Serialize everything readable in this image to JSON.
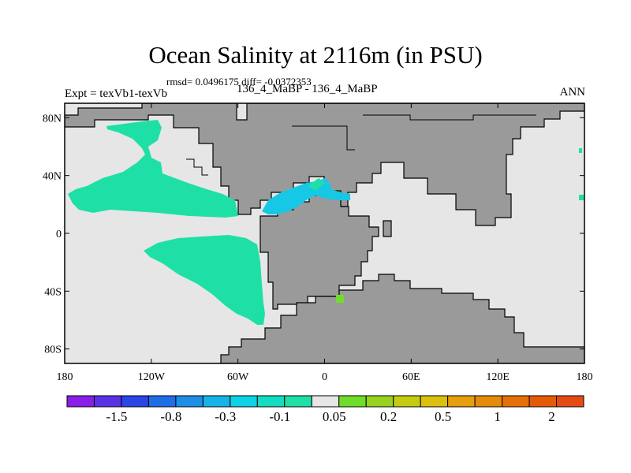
{
  "title": "Ocean Salinity at 2116m (in PSU)",
  "stats": "rmsd= 0.0496175 diff= -0.0372353",
  "experiment": "Expt = texVb1-texVb",
  "cases": "136_4_MaBP - 136_4_MaBP",
  "period": "ANN",
  "lat_labels": [
    "80N",
    "40N",
    "0",
    "40S",
    "80S"
  ],
  "lat_values": [
    80,
    40,
    0,
    -40,
    -80
  ],
  "lon_labels": [
    "180",
    "120W",
    "60W",
    "0",
    "60E",
    "120E",
    "180"
  ],
  "lon_values": [
    -180,
    -120,
    -60,
    0,
    60,
    120,
    180
  ],
  "map_extent": {
    "lon": [
      -180,
      180
    ],
    "lat": [
      -90,
      90
    ]
  },
  "colorbar": {
    "colors": [
      "#8a1ee6",
      "#5a32e6",
      "#2a46e6",
      "#1e6ee6",
      "#1e8ee6",
      "#16b4e6",
      "#0ed2e6",
      "#14dcc0",
      "#1ee0a6",
      "#e6e6e6",
      "#6ede2a",
      "#98d21e",
      "#c4cc12",
      "#dcc00e",
      "#e6a00e",
      "#e68a0a",
      "#e67008",
      "#e65a06",
      "#e64a14"
    ],
    "labels": [
      "-1.5",
      "-0.8",
      "-0.3",
      "-0.1",
      "0.05",
      "0.2",
      "0.5",
      "1",
      "2"
    ],
    "label_boundaries": [
      2,
      4,
      6,
      8,
      10,
      12,
      14,
      16,
      18
    ]
  },
  "palette": {
    "land": "#9a9a9a",
    "ocean_neutral": "#e6e6e6",
    "neg_small": "#1ee0a6",
    "neg_med": "#16c8e6",
    "pos_small": "#6ede2a",
    "coast": "#000000"
  }
}
